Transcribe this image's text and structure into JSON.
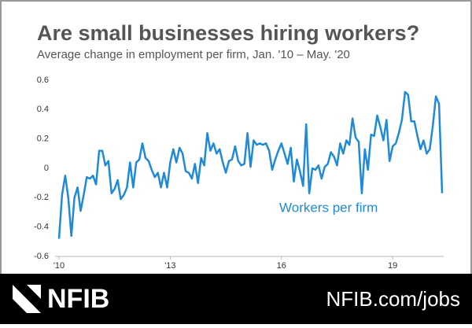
{
  "chart_data": {
    "type": "line",
    "title": "Are small businesses hiring workers?",
    "subtitle": "Average change in employment per firm, Jan. '10 – May. '20",
    "annotation": "Workers per firm",
    "categories": [
      "'10",
      null,
      null,
      null,
      null,
      null,
      null,
      null,
      null,
      null,
      null,
      null,
      null,
      null,
      null,
      null,
      null,
      null,
      null,
      null,
      null,
      null,
      null,
      null,
      null,
      null,
      null,
      null,
      null,
      null,
      null,
      null,
      null,
      null,
      null,
      null,
      "'13",
      null,
      null,
      null,
      null,
      null,
      null,
      null,
      null,
      null,
      null,
      null,
      null,
      null,
      null,
      null,
      null,
      null,
      null,
      null,
      null,
      null,
      null,
      null,
      null,
      null,
      null,
      null,
      null,
      null,
      null,
      null,
      null,
      null,
      null,
      null,
      "16",
      null,
      null,
      null,
      null,
      null,
      null,
      null,
      null,
      null,
      null,
      null,
      null,
      null,
      null,
      null,
      null,
      null,
      null,
      null,
      null,
      null,
      null,
      null,
      null,
      null,
      null,
      null,
      null,
      null,
      null,
      null,
      null,
      null,
      null,
      null,
      "19",
      null,
      null,
      null,
      null,
      null,
      null,
      null,
      null,
      null,
      null,
      null,
      null,
      null,
      null,
      null,
      null
    ],
    "series": [
      {
        "name": "Workers per firm",
        "color": "#1f8ad8",
        "values": [
          -0.48,
          -0.18,
          -0.05,
          -0.2,
          -0.46,
          -0.2,
          -0.13,
          -0.29,
          -0.18,
          -0.06,
          -0.07,
          -0.05,
          -0.11,
          0.12,
          0.12,
          0.02,
          0.05,
          -0.17,
          -0.14,
          -0.08,
          -0.21,
          -0.18,
          -0.13,
          0.04,
          -0.13,
          0.04,
          0.06,
          0.17,
          0.07,
          0.05,
          -0.01,
          -0.06,
          -0.03,
          -0.13,
          -0.03,
          -0.13,
          0.04,
          0.13,
          0.04,
          0.14,
          0.1,
          -0.02,
          -0.03,
          -0.07,
          0.03,
          -0.1,
          0.07,
          0.02,
          0.24,
          0.12,
          0.17,
          0.1,
          0.13,
          0.04,
          -0.03,
          0.05,
          0.06,
          0.15,
          0.05,
          0.02,
          0.03,
          0.24,
          0.01,
          0.19,
          0.16,
          0.17,
          0.16,
          0.17,
          0.12,
          -0.01,
          0.06,
          0.12,
          0.17,
          0.1,
          0.03,
          0.14,
          -0.09,
          0.06,
          -0.02,
          -0.12,
          0.3,
          -0.17,
          0.0,
          -0.01,
          0.02,
          -0.07,
          0.01,
          0.03,
          0.11,
          0.08,
          0.02,
          0.17,
          0.1,
          0.19,
          0.16,
          0.34,
          0.21,
          0.18,
          -0.17,
          0.13,
          -0.01,
          0.23,
          0.22,
          0.36,
          0.28,
          0.19,
          0.33,
          0.05,
          0.15,
          0.17,
          0.24,
          0.33,
          0.52,
          0.5,
          0.32,
          0.32,
          0.22,
          0.13,
          0.19,
          0.1,
          0.13,
          0.29,
          0.49,
          0.44,
          -0.17
        ]
      }
    ],
    "ylim": [
      -0.6,
      0.6
    ],
    "yticks": [
      0.6,
      0.4,
      0.2,
      0,
      -0.2,
      -0.4,
      -0.6
    ]
  },
  "footer": {
    "logo": "NFIB",
    "url": "NFIB.com/jobs"
  }
}
